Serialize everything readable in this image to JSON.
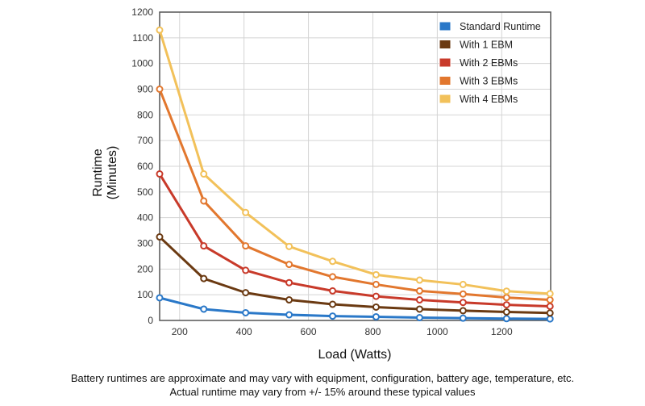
{
  "chart_data": {
    "type": "line",
    "title": "",
    "xlabel": "Load (Watts)",
    "ylabel_lines": [
      "Runtime",
      "(Minutes)"
    ],
    "xlim": [
      138,
      1352
    ],
    "ylim": [
      0,
      1200
    ],
    "x_ticks": [
      200,
      400,
      600,
      800,
      1000,
      1200
    ],
    "y_ticks": [
      0,
      100,
      200,
      300,
      400,
      500,
      600,
      700,
      800,
      900,
      1000,
      1100,
      1200
    ],
    "grid": true,
    "legend_position": "top-right",
    "x": [
      138,
      275,
      405,
      540,
      675,
      810,
      945,
      1080,
      1215,
      1350
    ],
    "series": [
      {
        "name": "Standard Runtime",
        "color": "#2a78c8",
        "values": [
          88,
          44,
          30,
          22,
          17,
          14,
          11,
          9,
          7,
          6
        ]
      },
      {
        "name": "With 1 EBM",
        "color": "#6b3a12",
        "values": [
          325,
          163,
          108,
          80,
          63,
          52,
          44,
          38,
          33,
          29
        ]
      },
      {
        "name": "With 2 EBMs",
        "color": "#c83a2a",
        "values": [
          570,
          290,
          195,
          147,
          115,
          94,
          80,
          70,
          61,
          55
        ]
      },
      {
        "name": "With 3 EBMs",
        "color": "#e2772e",
        "values": [
          900,
          465,
          290,
          218,
          170,
          140,
          115,
          103,
          89,
          80
        ]
      },
      {
        "name": "With 4 EBMs",
        "color": "#f2c15a",
        "values": [
          1130,
          570,
          420,
          288,
          230,
          178,
          157,
          140,
          114,
          104
        ]
      }
    ]
  },
  "footnote": {
    "line1": "Battery runtimes are approximate and may vary with equipment, configuration, battery age, temperature, etc.",
    "line2": "Actual runtime may vary from +/- 15% around these typical values"
  }
}
